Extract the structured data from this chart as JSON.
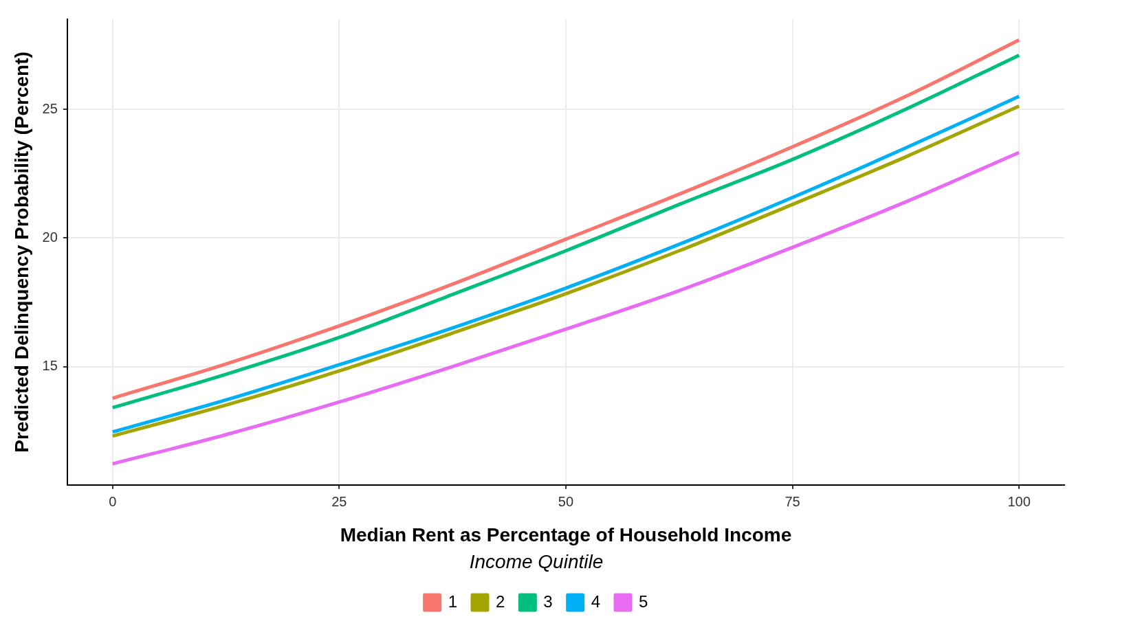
{
  "chart_data": {
    "type": "line",
    "xlabel": "Median Rent as Percentage of Household Income",
    "ylabel": "Predicted Delinquency Probability (Percent)",
    "legend_title": "Income Quintile",
    "legend": "bottom",
    "grid": true,
    "marker": "none",
    "line_style": "solid",
    "x": [
      0,
      12.5,
      25,
      37.5,
      50,
      62.5,
      75,
      87.5,
      100
    ],
    "xlim": [
      -5,
      105
    ],
    "xticks": [
      0,
      25,
      50,
      75,
      100
    ],
    "ylim": [
      10.4,
      28.5
    ],
    "yticks": [
      15,
      20,
      25
    ],
    "series": [
      {
        "name": "1",
        "color": "#f8766d",
        "values": [
          13.77,
          15.1,
          16.58,
          18.2,
          19.95,
          21.7,
          23.54,
          25.5,
          27.69
        ]
      },
      {
        "name": "2",
        "color": "#a3a500",
        "values": [
          12.3,
          13.5,
          14.83,
          16.3,
          17.83,
          19.5,
          21.3,
          23.15,
          25.12
        ]
      },
      {
        "name": "3",
        "color": "#00bf7d",
        "values": [
          13.4,
          14.7,
          16.13,
          17.8,
          19.5,
          21.3,
          23.05,
          25.0,
          27.1
        ]
      },
      {
        "name": "4",
        "color": "#00b0f6",
        "values": [
          12.46,
          13.7,
          15.07,
          16.5,
          18.05,
          19.75,
          21.57,
          23.5,
          25.5
        ]
      },
      {
        "name": "5",
        "color": "#e76bf3",
        "values": [
          11.22,
          12.35,
          13.62,
          15.0,
          16.45,
          17.95,
          19.63,
          21.4,
          23.32
        ]
      }
    ]
  }
}
